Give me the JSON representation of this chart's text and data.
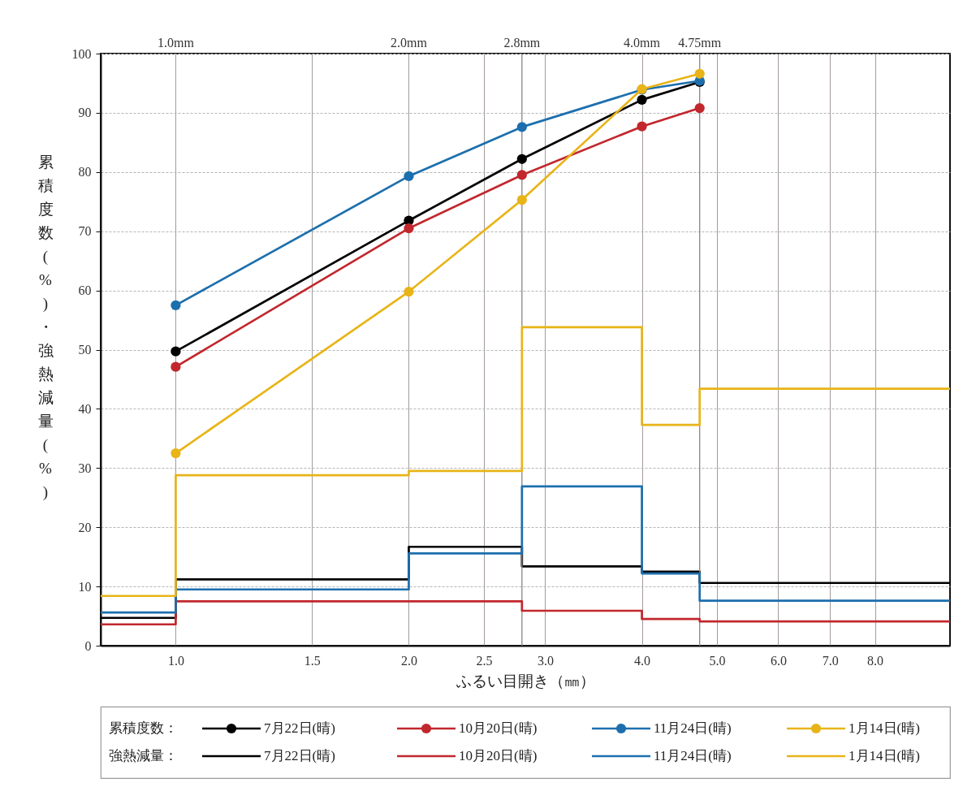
{
  "chart_data": {
    "type": "line",
    "xlabel": "ふるい目開き（㎜）",
    "ylabel": "累積度数(%)・強熱減量(%)",
    "annotations": [
      "1.0mm",
      "2.0mm",
      "2.8mm",
      "4.0mm",
      "4.75mm",
      "累積度数：",
      "強熱減量："
    ],
    "log": "x",
    "xlim": [
      0.8,
      10
    ],
    "xticks": [
      {
        "value": 1,
        "label": "1.0"
      },
      {
        "value": 1.5,
        "label": "1.5"
      },
      {
        "value": 2,
        "label": "2.0"
      },
      {
        "value": 2.5,
        "label": "2.5"
      },
      {
        "value": 3,
        "label": "3.0"
      },
      {
        "value": 4,
        "label": "4.0"
      },
      {
        "value": 5,
        "label": "5.0"
      },
      {
        "value": 6,
        "label": "6.0"
      },
      {
        "value": 7,
        "label": "7.0"
      },
      {
        "value": 8,
        "label": "8.0"
      }
    ],
    "ylim": [
      0,
      100
    ],
    "yticks": [
      0,
      10,
      20,
      30,
      40,
      50,
      60,
      70,
      80,
      90,
      100
    ],
    "grid": true,
    "legend": "bottom",
    "ref_lines": [
      {
        "axis": "x",
        "value": 2.8
      },
      {
        "axis": "x",
        "value": 4.75
      }
    ],
    "series": [
      {
        "name": "7月22日(晴)",
        "color": "#000000",
        "marker": "circle",
        "x": [
          1,
          2,
          2.8,
          4,
          4.75
        ],
        "values": [
          49.7,
          71.8,
          82.2,
          92.2,
          95.2
        ]
      },
      {
        "name": "10月20日(晴)",
        "color": "#c1272d",
        "marker": "circle",
        "x": [
          1,
          2,
          2.8,
          4,
          4.75
        ],
        "values": [
          47.1,
          70.5,
          79.5,
          87.7,
          90.8
        ]
      },
      {
        "name": "11月24日(晴)",
        "color": "#1c6fae",
        "marker": "circle",
        "x": [
          1,
          2,
          2.8,
          4,
          4.75
        ],
        "values": [
          57.5,
          79.3,
          87.6,
          93.9,
          95.4
        ]
      },
      {
        "name": "1月14日(晴)",
        "color": "#e8b418",
        "marker": "circle",
        "x": [
          1,
          2,
          2.8,
          4,
          4.75
        ],
        "values": [
          32.5,
          59.8,
          75.3,
          94.0,
          96.6
        ]
      },
      {
        "name": "7月22日(晴)",
        "color": "#000000",
        "type": "step",
        "x": [
          0.8,
          1,
          2,
          2.8,
          4,
          4.75,
          10
        ],
        "values": [
          4.7,
          11.2,
          16.7,
          13.4,
          12.5,
          10.6,
          10.6
        ]
      },
      {
        "name": "10月20日(晴)",
        "color": "#c1272d",
        "type": "step",
        "x": [
          0.8,
          1,
          2,
          2.8,
          4,
          4.75,
          10
        ],
        "values": [
          3.6,
          7.5,
          7.5,
          5.9,
          4.5,
          4.1,
          4.1
        ]
      },
      {
        "name": "11月24日(晴)",
        "color": "#1c6fae",
        "type": "step",
        "x": [
          0.8,
          1,
          2,
          2.8,
          4,
          4.75,
          10
        ],
        "values": [
          5.6,
          9.5,
          15.6,
          26.9,
          12.2,
          7.6,
          7.6
        ]
      },
      {
        "name": "1月14日(晴)",
        "color": "#e8b418",
        "type": "step",
        "x": [
          0.8,
          1,
          2,
          2.8,
          4,
          4.75,
          10
        ],
        "values": [
          8.4,
          28.8,
          29.5,
          53.8,
          37.3,
          43.4,
          43.4
        ]
      }
    ]
  }
}
